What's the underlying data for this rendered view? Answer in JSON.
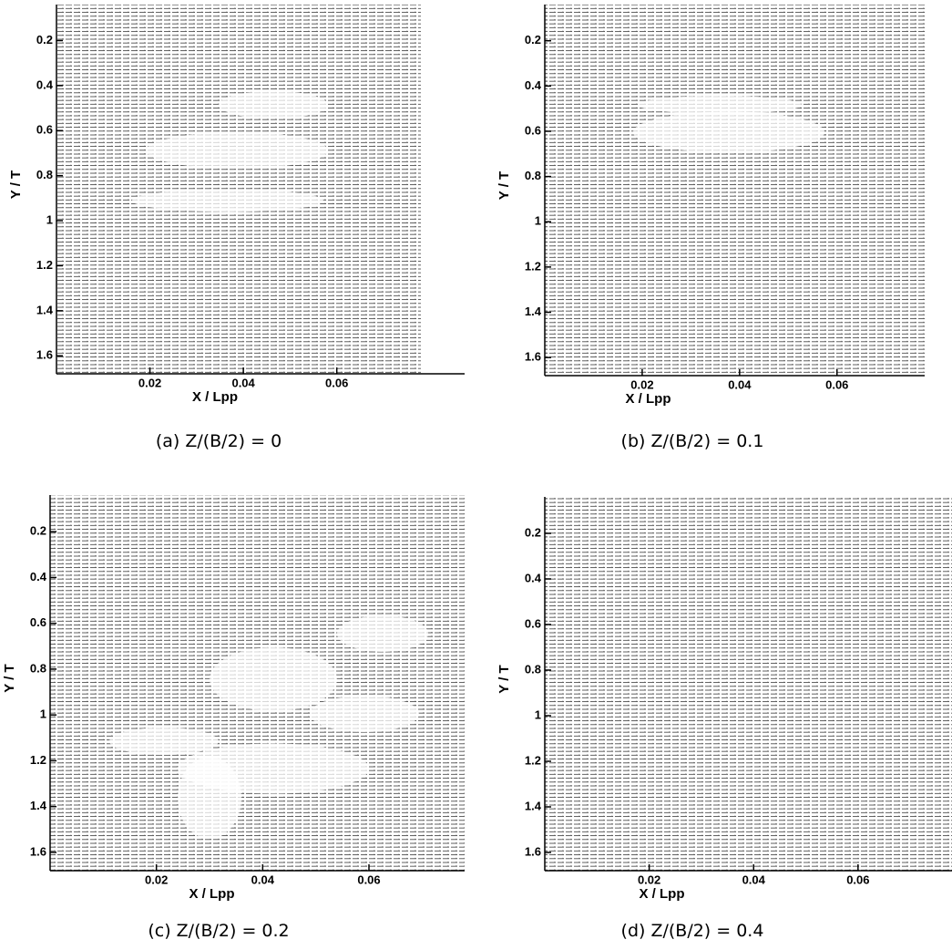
{
  "chart_data": [
    {
      "type": "vector",
      "caption": "(a) Z/(B/2) = 0",
      "x_label": "X / Lpp",
      "y_label": "Y / T",
      "xlim": [
        0,
        0.078
      ],
      "ylim": [
        0.04,
        1.68
      ],
      "y_inverted": true,
      "xticks": [
        0.02,
        0.04,
        0.06
      ],
      "yticks": [
        0.2,
        0.4,
        0.6,
        0.8,
        1,
        1.2,
        1.4,
        1.6
      ]
    },
    {
      "type": "vector",
      "caption": "(b) Z/(B/2) = 0.1",
      "x_label": "X / Lpp",
      "y_label": "Y / T",
      "xlim": [
        0,
        0.078
      ],
      "ylim": [
        0.04,
        1.68
      ],
      "y_inverted": true,
      "xticks": [
        0.02,
        0.04,
        0.06
      ],
      "yticks": [
        0.2,
        0.4,
        0.6,
        0.8,
        1,
        1.2,
        1.4,
        1.6
      ]
    },
    {
      "type": "vector",
      "caption": "(c) Z/(B/2) = 0.2",
      "x_label": "X / Lpp",
      "y_label": "Y / T",
      "xlim": [
        0,
        0.078
      ],
      "ylim": [
        0.04,
        1.68
      ],
      "y_inverted": true,
      "xticks": [
        0.02,
        0.04,
        0.06
      ],
      "yticks": [
        0.2,
        0.4,
        0.6,
        0.8,
        1,
        1.2,
        1.4,
        1.6
      ]
    },
    {
      "type": "vector",
      "caption": "(d) Z/(B/2) = 0.4",
      "x_label": "X / Lpp",
      "y_label": "Y / T",
      "xlim": [
        0,
        0.078
      ],
      "ylim": [
        0.04,
        1.68
      ],
      "y_inverted": true,
      "xticks": [
        0.02,
        0.04,
        0.06
      ],
      "yticks": [
        0.2,
        0.4,
        0.6,
        0.8,
        1,
        1.2,
        1.4,
        1.6
      ]
    }
  ]
}
